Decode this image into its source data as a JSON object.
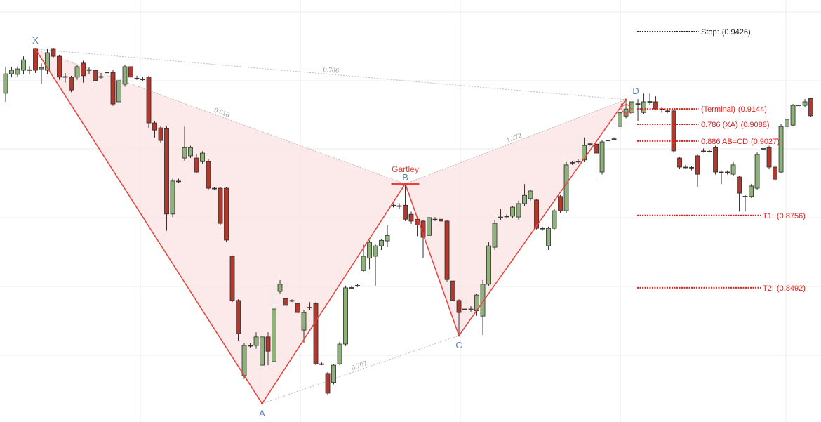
{
  "chart_data": {
    "type": "candlestick",
    "xlim": [
      -0.941,
      136.7
    ],
    "ylim": [
      0.8003,
      0.9541
    ],
    "candles": {
      "up_color": "#8fb27a",
      "down_color": "#b0382c",
      "open": [
        0.9201,
        0.9272,
        0.927,
        0.9285,
        0.9285,
        0.9362,
        0.929,
        0.9285,
        0.9362,
        0.9336,
        0.9262,
        0.926,
        0.926,
        0.9311,
        0.9285,
        0.9285,
        0.9262,
        0.9278,
        0.9277,
        0.917,
        0.9234,
        0.9298,
        0.9256,
        0.9253,
        0.926,
        0.9093,
        0.9075,
        0.9072,
        0.8761,
        0.8881,
        0.8965,
        0.8973,
        0.8965,
        0.8952,
        0.8952,
        0.8855,
        0.8855,
        0.8855,
        0.8607,
        0.8446,
        0.8172,
        0.8282,
        0.8282,
        0.821,
        0.8313,
        0.8223,
        0.8479,
        0.8453,
        0.8446,
        0.8435,
        0.8338,
        0.8421,
        0.8435,
        0.8215,
        0.818,
        0.8147,
        0.8215,
        0.8287,
        0.8492,
        0.85,
        0.8555,
        0.86,
        0.8607,
        0.8645,
        0.8663,
        0.8793,
        0.8791,
        0.8793,
        0.876,
        0.8742,
        0.8735,
        0.8683,
        0.8742,
        0.8742,
        0.8735,
        0.8517,
        0.8446,
        0.8415,
        0.8415,
        0.8408,
        0.8389,
        0.8505,
        0.864,
        0.8748,
        0.8753,
        0.8753,
        0.875,
        0.8799,
        0.8817,
        0.8812,
        0.8709,
        0.8645,
        0.8709,
        0.8825,
        0.8773,
        0.8948,
        0.8952,
        0.8958,
        0.9016,
        0.9016,
        0.8914,
        0.9029,
        0.9034,
        0.908,
        0.9118,
        0.9131,
        0.9162,
        0.9131,
        0.917,
        0.917,
        0.9144,
        0.9137,
        0.9137,
        0.8965,
        0.8932,
        0.8931,
        0.8973,
        0.8991,
        0.899,
        0.9003,
        0.8914,
        0.8914,
        0.8906,
        0.8896,
        0.8825,
        0.8825,
        0.8855,
        0.8999,
        0.9003,
        0.8932,
        0.8914,
        0.908,
        0.9085,
        0.9157,
        0.9157,
        0.9182
      ],
      "high": [
        0.9298,
        0.9298,
        0.93,
        0.9336,
        0.93,
        0.9367,
        0.931,
        0.9362,
        0.9367,
        0.934,
        0.9275,
        0.9265,
        0.9305,
        0.932,
        0.9295,
        0.929,
        0.9275,
        0.93,
        0.9285,
        0.926,
        0.9305,
        0.9311,
        0.9265,
        0.926,
        0.9265,
        0.91,
        0.908,
        0.908,
        0.889,
        0.889,
        0.908,
        0.901,
        0.898,
        0.899,
        0.896,
        0.886,
        0.886,
        0.886,
        0.861,
        0.845,
        0.829,
        0.829,
        0.833,
        0.833,
        0.833,
        0.848,
        0.852,
        0.8515,
        0.845,
        0.844,
        0.841,
        0.844,
        0.844,
        0.822,
        0.8185,
        0.8215,
        0.8295,
        0.85,
        0.85,
        0.8505,
        0.865,
        0.8665,
        0.865,
        0.867,
        0.872,
        0.88,
        0.88,
        0.8871,
        0.877,
        0.875,
        0.874,
        0.8755,
        0.875,
        0.875,
        0.874,
        0.852,
        0.845,
        0.846,
        0.8425,
        0.847,
        0.852,
        0.866,
        0.874,
        0.878,
        0.876,
        0.879,
        0.881,
        0.887,
        0.885,
        0.8815,
        0.8715,
        0.8715,
        0.878,
        0.883,
        0.895,
        0.8955,
        0.896,
        0.904,
        0.902,
        0.902,
        0.903,
        0.904,
        0.904,
        0.915,
        0.9178,
        0.918,
        0.918,
        0.92,
        0.92,
        0.919,
        0.915,
        0.9145,
        0.914,
        0.897,
        0.894,
        0.8935,
        0.898,
        0.9,
        0.8995,
        0.901,
        0.892,
        0.892,
        0.895,
        0.89,
        0.883,
        0.887,
        0.8985,
        0.9005,
        0.901,
        0.894,
        0.909,
        0.9115,
        0.9162,
        0.9162,
        0.918,
        0.9185
      ],
      "low": [
        0.917,
        0.9259,
        0.926,
        0.927,
        0.927,
        0.9275,
        0.9235,
        0.927,
        0.933,
        0.925,
        0.924,
        0.9205,
        0.925,
        0.924,
        0.927,
        0.9215,
        0.9255,
        0.9275,
        0.9155,
        0.9165,
        0.9225,
        0.9255,
        0.925,
        0.9245,
        0.9075,
        0.904,
        0.902,
        0.87,
        0.875,
        0.8875,
        0.8955,
        0.8965,
        0.891,
        0.8945,
        0.885,
        0.885,
        0.872,
        0.866,
        0.844,
        0.83,
        0.816,
        0.8275,
        0.827,
        0.807,
        0.821,
        0.82,
        0.847,
        0.842,
        0.844,
        0.8395,
        0.829,
        0.841,
        0.821,
        0.821,
        0.81,
        0.814,
        0.821,
        0.828,
        0.8488,
        0.8495,
        0.855,
        0.856,
        0.85,
        0.863,
        0.864,
        0.8785,
        0.878,
        0.8735,
        0.8725,
        0.868,
        0.86,
        0.868,
        0.8735,
        0.873,
        0.8515,
        0.844,
        0.8318,
        0.841,
        0.8405,
        0.839,
        0.832,
        0.85,
        0.863,
        0.874,
        0.8745,
        0.8745,
        0.874,
        0.879,
        0.881,
        0.8705,
        0.87,
        0.863,
        0.8705,
        0.8765,
        0.8765,
        0.894,
        0.8945,
        0.895,
        0.901,
        0.888,
        0.8905,
        0.902,
        0.903,
        0.907,
        0.911,
        0.9125,
        0.91,
        0.9125,
        0.916,
        0.914,
        0.913,
        0.913,
        0.8985,
        0.8925,
        0.8925,
        0.892,
        0.886,
        0.8985,
        0.8985,
        0.8905,
        0.887,
        0.8905,
        0.89,
        0.877,
        0.877,
        0.882,
        0.885,
        0.8995,
        0.8925,
        0.888,
        0.891,
        0.907,
        0.908,
        0.915,
        0.915,
        0.9115
      ],
      "close": [
        0.9272,
        0.9285,
        0.929,
        0.9323,
        0.9287,
        0.9285,
        0.9295,
        0.9349,
        0.9336,
        0.926,
        0.926,
        0.9213,
        0.9298,
        0.9265,
        0.9287,
        0.9247,
        0.926,
        0.9277,
        0.9162,
        0.9247,
        0.9298,
        0.926,
        0.9255,
        0.9252,
        0.9093,
        0.9067,
        0.9029,
        0.8761,
        0.8881,
        0.888,
        0.9003,
        0.9003,
        0.8914,
        0.8983,
        0.8855,
        0.8854,
        0.8727,
        0.8666,
        0.8446,
        0.8325,
        0.8282,
        0.8281,
        0.8313,
        0.8313,
        0.8261,
        0.8415,
        0.8505,
        0.8428,
        0.8445,
        0.8402,
        0.8402,
        0.842,
        0.8215,
        0.8214,
        0.8108,
        0.821,
        0.8287,
        0.8492,
        0.8493,
        0.8501,
        0.8607,
        0.8658,
        0.8645,
        0.8665,
        0.8683,
        0.8792,
        0.879,
        0.8742,
        0.8735,
        0.8721,
        0.8676,
        0.8748,
        0.8741,
        0.8735,
        0.8522,
        0.8446,
        0.8402,
        0.8414,
        0.8415,
        0.8466,
        0.8505,
        0.8645,
        0.8727,
        0.875,
        0.8752,
        0.8786,
        0.8799,
        0.8829,
        0.8845,
        0.8709,
        0.8708,
        0.8709,
        0.8773,
        0.8773,
        0.894,
        0.8949,
        0.8953,
        0.9011,
        0.9017,
        0.8983,
        0.9024,
        0.903,
        0.9035,
        0.9131,
        0.9144,
        0.917,
        0.9163,
        0.917,
        0.9171,
        0.9144,
        0.9143,
        0.9136,
        0.8991,
        0.8932,
        0.8931,
        0.893,
        0.8906,
        0.899,
        0.8989,
        0.8914,
        0.8913,
        0.8913,
        0.894,
        0.8837,
        0.8826,
        0.8863,
        0.8978,
        0.9,
        0.8932,
        0.8888,
        0.908,
        0.9106,
        0.9157,
        0.9158,
        0.917,
        0.9119
      ]
    },
    "pattern": {
      "name": "Gartley",
      "color": "#e8403a",
      "fill": "#fbe3e3",
      "label_color": "#5a84ad",
      "points": [
        {
          "label": "X",
          "candle": 5,
          "value": 0.9362
        },
        {
          "label": "A",
          "candle": 43,
          "value": 0.807
        },
        {
          "label": "B",
          "candle": 67,
          "value": 0.8871
        },
        {
          "label": "C",
          "candle": 76,
          "value": 0.8318
        },
        {
          "label": "D",
          "candle": 104,
          "value": 0.9178
        }
      ],
      "ratios": [
        {
          "from": 0,
          "to": 4,
          "value": 0.786
        },
        {
          "from": 0,
          "to": 2,
          "value": 0.618
        },
        {
          "from": 2,
          "to": 4,
          "value": 1.272
        },
        {
          "from": 1,
          "to": 3,
          "value": 0.707
        }
      ]
    },
    "levels": [
      {
        "label": "Stop:",
        "value": 0.9426,
        "value_label": "(0.9426)",
        "color": "#222222"
      },
      {
        "label": "(Terminal)",
        "value": 0.9144,
        "value_label": "(0.9144)",
        "color": "#e8201a"
      },
      {
        "label": "0.786 (XA)",
        "value": 0.9088,
        "value_label": "(0.9088)",
        "color": "#e8201a"
      },
      {
        "label": "0.886 AB=CD",
        "value": 0.9027,
        "value_label": "(0.9027)",
        "color": "#e8201a"
      },
      {
        "label": "T1:",
        "value": 0.8756,
        "value_label": "(0.8756)",
        "color": "#e8201a"
      },
      {
        "label": "T2:",
        "value": 0.8492,
        "value_label": "(0.8492)",
        "color": "#e8201a"
      }
    ]
  }
}
